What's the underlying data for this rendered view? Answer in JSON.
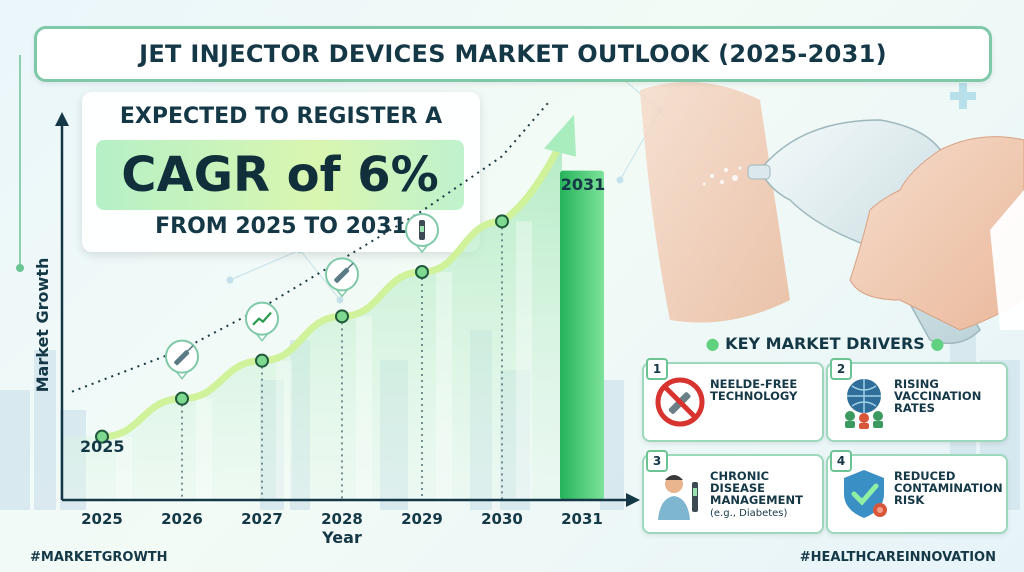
{
  "title": "JET INJECTOR DEVICES MARKET OUTLOOK (2025-2031)",
  "headline": {
    "line1": "EXPECTED TO REGISTER A",
    "highlight": "CAGR of 6%",
    "line3": "FROM 2025 TO 2031"
  },
  "chart_data": {
    "type": "line",
    "title": "",
    "xlabel": "Year",
    "ylabel": "Market Growth",
    "categories": [
      "2025",
      "2026",
      "2027",
      "2028",
      "2029",
      "2030",
      "2031"
    ],
    "values": [
      1.0,
      1.06,
      1.12,
      1.19,
      1.26,
      1.34,
      1.42
    ],
    "point_labels": {
      "first": "2025",
      "last": "2031"
    },
    "ylim": [
      0.9,
      1.5
    ]
  },
  "drivers": {
    "heading": "KEY MARKET DRIVERS",
    "items": [
      {
        "number": "1",
        "label": "NEELDE-FREE TECHNOLOGY",
        "sub": "",
        "icon": "no-needle-icon"
      },
      {
        "number": "2",
        "label": "RISING VACCINATION RATES",
        "sub": "",
        "icon": "globe-people-icon"
      },
      {
        "number": "3",
        "label": "CHRONIC DISEASE MANAGEMENT",
        "sub": "(e.g., Diabetes)",
        "icon": "patient-pen-icon"
      },
      {
        "number": "4",
        "label": "REDUCED CONTAMINATION RISK",
        "sub": "",
        "icon": "shield-check-icon"
      }
    ]
  },
  "hashtags": {
    "left": "#MARKETGROWTH",
    "right": "#HEALTHCAREINNOVATION"
  },
  "colors": {
    "accent": "#5fd17f",
    "dark": "#153847",
    "bar": "#3cc36a"
  }
}
